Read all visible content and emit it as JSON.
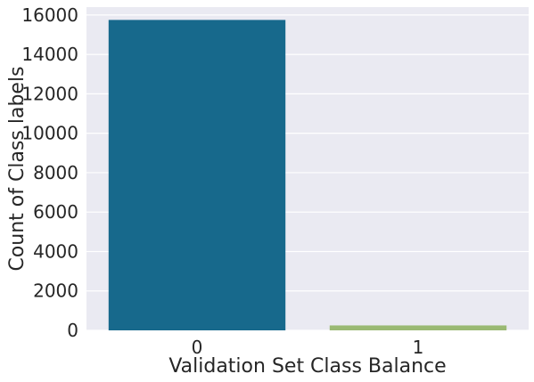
{
  "chart_data": {
    "type": "bar",
    "title": "",
    "xlabel": "Validation Set Class Balance",
    "ylabel": "Count of Class labels",
    "categories": [
      "0",
      "1"
    ],
    "values": [
      15750,
      250
    ],
    "bar_colors": [
      "#17698C",
      "#9AB973"
    ],
    "ylim": [
      0,
      16400
    ],
    "yticks": [
      0,
      2000,
      4000,
      6000,
      8000,
      10000,
      12000,
      14000,
      16000
    ],
    "ytick_labels": [
      "0",
      "2000",
      "4000",
      "6000",
      "8000",
      "10000",
      "12000",
      "14000",
      "16000"
    ],
    "grid": true,
    "legend": "none",
    "background_color": "#EAEAF2",
    "grid_color": "#FFFFFF"
  }
}
